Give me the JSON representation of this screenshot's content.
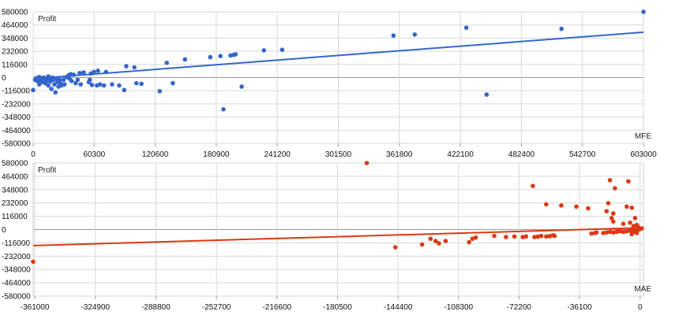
{
  "chart_data": [
    {
      "type": "scatter",
      "ylabel": "Profit",
      "xlabel": "MFE",
      "color": "#3366cc",
      "xlim": [
        0,
        603000
      ],
      "ylim": [
        -580000,
        580000
      ],
      "x_ticks": [
        0,
        60300,
        120600,
        180900,
        241200,
        301500,
        361800,
        422100,
        482400,
        542700,
        603000
      ],
      "y_ticks": [
        580000,
        464000,
        348000,
        232000,
        116000,
        0,
        -116000,
        -232000,
        -348000,
        -464000,
        -580000
      ],
      "grid": true,
      "trendline": {
        "from": [
          0,
          -10000
        ],
        "to": [
          603000,
          400000
        ]
      },
      "points": [
        [
          0,
          -110000
        ],
        [
          2000,
          -20000
        ],
        [
          3000,
          -5000
        ],
        [
          4000,
          -30000
        ],
        [
          5000,
          -15000
        ],
        [
          6000,
          -60000
        ],
        [
          6000,
          5000
        ],
        [
          7000,
          -25000
        ],
        [
          8000,
          -10000
        ],
        [
          9000,
          -40000
        ],
        [
          10000,
          0
        ],
        [
          11000,
          -20000
        ],
        [
          12000,
          -50000
        ],
        [
          13000,
          -5000
        ],
        [
          14000,
          -30000
        ],
        [
          15000,
          10000
        ],
        [
          15000,
          -70000
        ],
        [
          16000,
          -15000
        ],
        [
          17000,
          -35000
        ],
        [
          18000,
          -100000
        ],
        [
          19000,
          0
        ],
        [
          20000,
          -20000
        ],
        [
          21000,
          -60000
        ],
        [
          22000,
          -130000
        ],
        [
          23000,
          -10000
        ],
        [
          24000,
          -40000
        ],
        [
          25000,
          -80000
        ],
        [
          26000,
          -20000
        ],
        [
          27000,
          -50000
        ],
        [
          28000,
          -70000
        ],
        [
          30000,
          -20000
        ],
        [
          31000,
          -60000
        ],
        [
          33000,
          5000
        ],
        [
          35000,
          20000
        ],
        [
          36000,
          -10000
        ],
        [
          37000,
          30000
        ],
        [
          38000,
          -30000
        ],
        [
          40000,
          25000
        ],
        [
          42000,
          -50000
        ],
        [
          44000,
          -20000
        ],
        [
          46000,
          40000
        ],
        [
          47000,
          -60000
        ],
        [
          50000,
          45000
        ],
        [
          55000,
          -40000
        ],
        [
          56000,
          -20000
        ],
        [
          57000,
          35000
        ],
        [
          58000,
          -65000
        ],
        [
          60000,
          50000
        ],
        [
          63000,
          -70000
        ],
        [
          64000,
          60000
        ],
        [
          66000,
          -60000
        ],
        [
          70000,
          -70000
        ],
        [
          72000,
          50000
        ],
        [
          78000,
          -60000
        ],
        [
          85000,
          -70000
        ],
        [
          90000,
          -110000
        ],
        [
          92000,
          100000
        ],
        [
          100000,
          90000
        ],
        [
          102000,
          -50000
        ],
        [
          107000,
          -55000
        ],
        [
          125000,
          -120000
        ],
        [
          132000,
          130000
        ],
        [
          138000,
          -50000
        ],
        [
          150000,
          160000
        ],
        [
          175000,
          180000
        ],
        [
          185000,
          190000
        ],
        [
          188000,
          -280000
        ],
        [
          195000,
          195000
        ],
        [
          198000,
          200000
        ],
        [
          200000,
          205000
        ],
        [
          206000,
          -80000
        ],
        [
          228000,
          240000
        ],
        [
          246000,
          245000
        ],
        [
          356000,
          370000
        ],
        [
          377000,
          380000
        ],
        [
          428000,
          440000
        ],
        [
          448000,
          -150000
        ],
        [
          522000,
          430000
        ],
        [
          603000,
          580000
        ]
      ]
    },
    {
      "type": "scatter",
      "ylabel": "Profit",
      "xlabel": "MAE",
      "color": "#dc3912",
      "xlim": [
        -362000,
        2000
      ],
      "ylim": [
        -580000,
        580000
      ],
      "x_ticks": [
        -361000,
        -324900,
        -288800,
        -252700,
        -216600,
        -180500,
        -144400,
        -108300,
        -72200,
        -36100,
        0
      ],
      "y_ticks": [
        580000,
        464000,
        348000,
        232000,
        116000,
        0,
        -116000,
        -232000,
        -348000,
        -464000,
        -580000
      ],
      "grid": true,
      "trendline": {
        "from": [
          -362000,
          -140000
        ],
        "to": [
          0,
          15000
        ]
      },
      "points": [
        [
          -362000,
          -280000
        ],
        [
          -163000,
          580000
        ],
        [
          -146000,
          -155000
        ],
        [
          -130000,
          -130000
        ],
        [
          -125000,
          -80000
        ],
        [
          -122000,
          -100000
        ],
        [
          -120000,
          -120000
        ],
        [
          -116000,
          -100000
        ],
        [
          -102000,
          -110000
        ],
        [
          -100000,
          -80000
        ],
        [
          -98000,
          -70000
        ],
        [
          -87000,
          -55000
        ],
        [
          -80000,
          -65000
        ],
        [
          -75000,
          -60000
        ],
        [
          -70000,
          -65000
        ],
        [
          -68000,
          -60000
        ],
        [
          -63000,
          -65000
        ],
        [
          -61000,
          -62000
        ],
        [
          -59000,
          -55000
        ],
        [
          -56000,
          -60000
        ],
        [
          -54000,
          -58000
        ],
        [
          -52000,
          -50000
        ],
        [
          -51000,
          -55000
        ],
        [
          -64000,
          380000
        ],
        [
          -56000,
          220000
        ],
        [
          -47000,
          210000
        ],
        [
          -38000,
          200000
        ],
        [
          -31000,
          185000
        ],
        [
          -29000,
          -35000
        ],
        [
          -27000,
          -30000
        ],
        [
          -26000,
          -25000
        ],
        [
          -22000,
          -30000
        ],
        [
          -20000,
          -25000
        ],
        [
          -18000,
          -20000
        ],
        [
          -16000,
          -25000
        ],
        [
          -14000,
          -20000
        ],
        [
          -12000,
          -15000
        ],
        [
          -10000,
          -20000
        ],
        [
          -8000,
          -15000
        ],
        [
          -6000,
          -10000
        ],
        [
          -4000,
          -5000
        ],
        [
          -2000,
          -10000
        ],
        [
          -1000,
          0
        ],
        [
          0,
          5000
        ],
        [
          1000,
          10000
        ],
        [
          -18000,
          430000
        ],
        [
          -15000,
          360000
        ],
        [
          -19000,
          230000
        ],
        [
          -20000,
          160000
        ],
        [
          -16000,
          140000
        ],
        [
          -17000,
          100000
        ],
        [
          -16000,
          70000
        ],
        [
          -10000,
          50000
        ],
        [
          -13000,
          -5000
        ],
        [
          -8000,
          200000
        ],
        [
          -7000,
          420000
        ],
        [
          -5000,
          190000
        ],
        [
          -3000,
          100000
        ],
        [
          -6000,
          60000
        ],
        [
          -4000,
          30000
        ],
        [
          -2000,
          40000
        ],
        [
          -1000,
          20000
        ],
        [
          -3000,
          -20000
        ],
        [
          -5000,
          -40000
        ],
        [
          -2000,
          -30000
        ]
      ]
    }
  ]
}
